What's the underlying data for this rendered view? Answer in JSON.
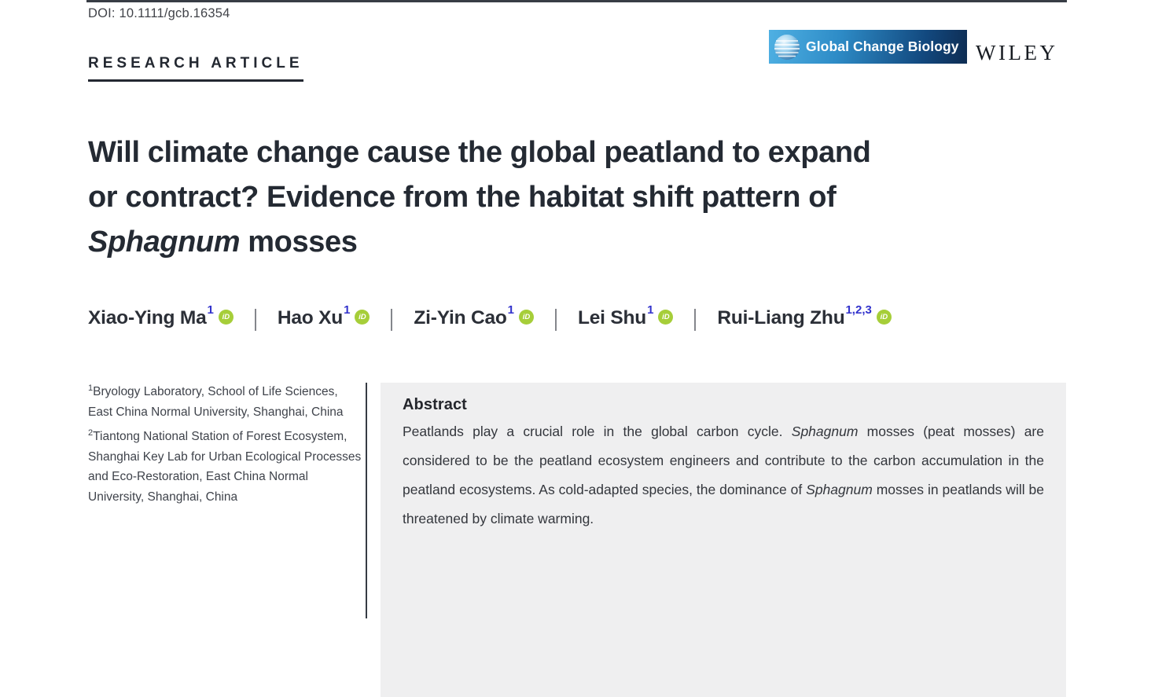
{
  "header": {
    "doi": "DOI: 10.1111/gcb.16354",
    "article_type": "RESEARCH ARTICLE"
  },
  "branding": {
    "journal_name": "Global Change Biology",
    "publisher": "WILEY",
    "journal_logo_gradient": [
      "#4fb0e3",
      "#0e2c52"
    ]
  },
  "title": {
    "lines": [
      [
        {
          "text": "Will climate change cause the global peatland to expand"
        }
      ],
      [
        {
          "text": "or contract? Evidence from the habitat shift pattern of"
        }
      ],
      [
        {
          "text": "Sphagnum",
          "italic": true
        },
        {
          "text": " mosses"
        }
      ]
    ]
  },
  "authors": {
    "orcid_label": "iD",
    "list": [
      {
        "name": "Xiao-Ying Ma",
        "sup": "1"
      },
      {
        "name": "Hao Xu",
        "sup": "1"
      },
      {
        "name": "Zi-Yin Cao",
        "sup": "1"
      },
      {
        "name": "Lei Shu",
        "sup": "1"
      },
      {
        "name": "Rui-Liang Zhu",
        "sup": "1,2,3"
      }
    ]
  },
  "affiliations": [
    {
      "sup": "1",
      "text": "Bryology Laboratory, School of Life Sciences, East China Normal University, Shanghai, China"
    },
    {
      "sup": "2",
      "text": "Tiantong National Station of Forest Ecosystem, Shanghai Key Lab for Urban Ecological Processes and Eco-Restoration, East China Normal University, Shanghai, China"
    }
  ],
  "abstract": {
    "heading": "Abstract",
    "segments": [
      {
        "text": "Peatlands play a crucial role in the global carbon cycle. "
      },
      {
        "text": "Sphagnum",
        "italic": true
      },
      {
        "text": " mosses (peat mosses) are considered to be the peatland ecosystem engineers and contribute to the carbon accumulation in the peatland ecosystems. As cold-adapted species, the dominance of "
      },
      {
        "text": "Sphagnum",
        "italic": true
      },
      {
        "text": " mosses in peatlands will be threatened by climate warming."
      }
    ]
  },
  "colors": {
    "accent_dark": "#242a33",
    "orcid_green": "#a6ce39",
    "superscript_blue": "#3333cc",
    "abstract_background": "#efeff0",
    "divider": "#363b44"
  }
}
